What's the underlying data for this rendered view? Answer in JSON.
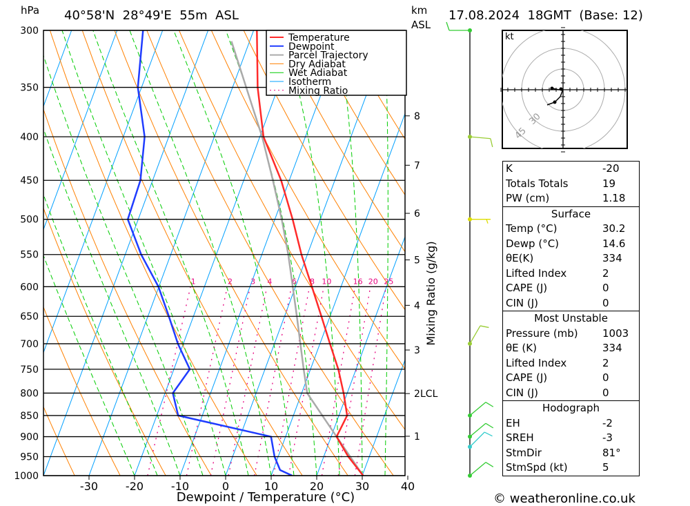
{
  "header": {
    "pressure_unit": "hPa",
    "location": "40°58'N  28°49'E  55m  ASL",
    "km_label": "km",
    "asl_label": "ASL",
    "datetime": "17.08.2024  18GMT  (Base: 12)",
    "copyright": "© weatheronline.co.uk"
  },
  "colors": {
    "temperature": "#ff2a2a",
    "dewpoint": "#1f3cff",
    "parcel": "#aaaaaa",
    "dry_adiabat": "#ff8000",
    "wet_adiabat": "#00cc00",
    "isotherm": "#00a0ff",
    "mixing_ratio": "#e6007e"
  },
  "chart_data": {
    "type": "line",
    "title": "Skew-T log-P sounding",
    "xlabel": "Dewpoint / Temperature (°C)",
    "ylabel": "hPa",
    "y2label": "Mixing Ratio (g/kg)",
    "xlim": [
      -40,
      40
    ],
    "ylim": [
      1000,
      300
    ],
    "pressure_ticks": [
      300,
      350,
      400,
      450,
      500,
      550,
      600,
      650,
      700,
      750,
      800,
      850,
      900,
      950,
      1000
    ],
    "temperature_ticks": [
      -30,
      -20,
      -10,
      0,
      10,
      20,
      30,
      40
    ],
    "km_ticks": [
      {
        "label": "1",
        "p": 899
      },
      {
        "label": "2",
        "p": 801
      },
      {
        "label": "3",
        "p": 712
      },
      {
        "label": "4",
        "p": 631
      },
      {
        "label": "5",
        "p": 558
      },
      {
        "label": "6",
        "p": 492
      },
      {
        "label": "7",
        "p": 432
      },
      {
        "label": "8",
        "p": 378
      }
    ],
    "lcl_label": "LCL",
    "lcl_pressure": 801,
    "legend": [
      "Temperature",
      "Dewpoint",
      "Parcel Trajectory",
      "Dry Adiabat",
      "Wet Adiabat",
      "Isotherm",
      "Mixing Ratio"
    ],
    "mixing_ratios": [
      1,
      2,
      3,
      4,
      6,
      8,
      10,
      16,
      20,
      25
    ],
    "series": [
      {
        "name": "Temperature",
        "p": [
          1000,
          950,
          900,
          850,
          800,
          750,
          700,
          650,
          600,
          550,
          500,
          450,
          400,
          350,
          300
        ],
        "t": [
          30.2,
          25.4,
          21.2,
          21.8,
          19.2,
          16.1,
          12.2,
          8.1,
          3.6,
          -1.3,
          -6.1,
          -11.8,
          -19.2,
          -24.5,
          -29.3
        ]
      },
      {
        "name": "Dewpoint",
        "p": [
          1000,
          985,
          950,
          900,
          850,
          800,
          750,
          700,
          650,
          600,
          550,
          500,
          450,
          400,
          350,
          300
        ],
        "t": [
          14.6,
          11.5,
          9.2,
          6.8,
          -15.3,
          -18.3,
          -16.5,
          -21.2,
          -25.4,
          -30.1,
          -36.5,
          -42.3,
          -42.7,
          -45.3,
          -50.8,
          -54.3
        ]
      },
      {
        "name": "Parcel Trajectory",
        "p": [
          1000,
          900,
          800,
          750,
          650,
          550,
          500,
          450,
          400,
          366,
          333,
          309
        ],
        "t": [
          30.2,
          21.2,
          11.2,
          8.5,
          2.7,
          -4.2,
          -8.5,
          -13.6,
          -19.5,
          -24.5,
          -29.8,
          -34.0
        ]
      }
    ],
    "winds": [
      {
        "p": 300,
        "dir": 270,
        "kt": 10,
        "color": "#33cc33"
      },
      {
        "p": 400,
        "dir": 95,
        "kt": 10,
        "color": "#99cc33"
      },
      {
        "p": 500,
        "dir": 90,
        "kt": 5,
        "color": "#dddd00"
      },
      {
        "p": 700,
        "dir": 30,
        "kt": 10,
        "color": "#99cc33"
      },
      {
        "p": 850,
        "dir": 50,
        "kt": 10,
        "color": "#33cc33"
      },
      {
        "p": 900,
        "dir": 50,
        "kt": 10,
        "color": "#33cc33"
      },
      {
        "p": 925,
        "dir": 45,
        "kt": 10,
        "color": "#33cccc"
      },
      {
        "p": 1000,
        "dir": 50,
        "kt": 10,
        "color": "#33cc33"
      }
    ],
    "hodograph": {
      "unit_label": "kt",
      "rings_kt": [
        15,
        30,
        45
      ],
      "ring_labels": [
        "30",
        "45"
      ],
      "trace_kt": [
        [
          -8,
          1
        ],
        [
          -3,
          0
        ],
        [
          -1.5,
          0.5
        ],
        [
          -0.5,
          -1
        ],
        [
          -2,
          -5
        ],
        [
          -6,
          -9
        ],
        [
          -11.5,
          -11
        ]
      ]
    }
  },
  "indices": [
    {
      "rows": [
        {
          "label": "K",
          "value": "-20"
        },
        {
          "label": "Totals Totals",
          "value": "19"
        },
        {
          "label": "PW (cm)",
          "value": "1.18"
        }
      ]
    },
    {
      "title": "Surface",
      "rows": [
        {
          "label": "Temp (°C)",
          "value": "30.2"
        },
        {
          "label": "Dewp (°C)",
          "value": "14.6"
        },
        {
          "label": "θE(K)",
          "value": "334"
        },
        {
          "label": "Lifted Index",
          "value": "2"
        },
        {
          "label": "CAPE (J)",
          "value": "0"
        },
        {
          "label": "CIN (J)",
          "value": "0"
        }
      ]
    },
    {
      "title": "Most Unstable",
      "rows": [
        {
          "label": "Pressure (mb)",
          "value": "1003"
        },
        {
          "label": "θE (K)",
          "value": "334"
        },
        {
          "label": "Lifted Index",
          "value": "2"
        },
        {
          "label": "CAPE (J)",
          "value": "0"
        },
        {
          "label": "CIN (J)",
          "value": "0"
        }
      ]
    },
    {
      "title": "Hodograph",
      "rows": [
        {
          "label": "EH",
          "value": "-2"
        },
        {
          "label": "SREH",
          "value": "-3"
        },
        {
          "label": "StmDir",
          "value": "81°"
        },
        {
          "label": "StmSpd (kt)",
          "value": "5"
        }
      ]
    }
  ]
}
